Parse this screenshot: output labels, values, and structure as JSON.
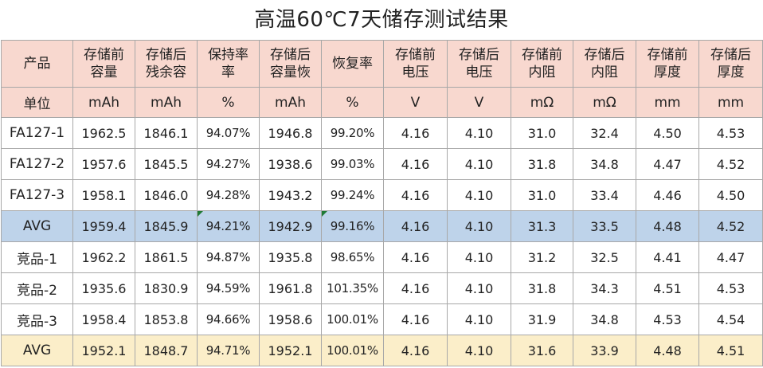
{
  "title": "高温60℃7天储存测试结果",
  "header": {
    "product": [
      "产品"
    ],
    "cap_before": [
      "存储前",
      "容量"
    ],
    "cap_after": [
      "存储后",
      "残余容"
    ],
    "retention": [
      "保持率",
      "率"
    ],
    "recover_cap": [
      "存储后",
      "容量恢"
    ],
    "recovery": [
      "恢复率"
    ],
    "v_before": [
      "存储前",
      "电压"
    ],
    "v_after": [
      "存储后",
      "电压"
    ],
    "r_before": [
      "存储前",
      "内阻"
    ],
    "r_after": [
      "存储后",
      "内阻"
    ],
    "t_before": [
      "存储前",
      "厚度"
    ],
    "t_after": [
      "存储后",
      "厚度"
    ]
  },
  "units": {
    "label": "单位",
    "cap_before": "mAh",
    "cap_after": "mAh",
    "retention": "%",
    "recover_cap": "mAh",
    "recovery": "%",
    "v_before": "V",
    "v_after": "V",
    "r_before": "mΩ",
    "r_after": "mΩ",
    "t_before": "mm",
    "t_after": "mm"
  },
  "rows": [
    {
      "product": "FA127-1",
      "cap_before": "1962.5",
      "cap_after": "1846.1",
      "retention": "94.07%",
      "recover_cap": "1946.8",
      "recovery": "99.20%",
      "v_before": "4.16",
      "v_after": "4.10",
      "r_before": "31.0",
      "r_after": "32.4",
      "t_before": "4.50",
      "t_after": "4.53"
    },
    {
      "product": "FA127-2",
      "cap_before": "1957.6",
      "cap_after": "1845.5",
      "retention": "94.27%",
      "recover_cap": "1938.6",
      "recovery": "99.03%",
      "v_before": "4.16",
      "v_after": "4.10",
      "r_before": "31.8",
      "r_after": "34.8",
      "t_before": "4.47",
      "t_after": "4.52"
    },
    {
      "product": "FA127-3",
      "cap_before": "1958.1",
      "cap_after": "1846.0",
      "retention": "94.28%",
      "recover_cap": "1943.2",
      "recovery": "99.24%",
      "v_before": "4.16",
      "v_after": "4.10",
      "r_before": "31.0",
      "r_after": "33.4",
      "t_before": "4.46",
      "t_after": "4.50"
    },
    {
      "product": "AVG",
      "cap_before": "1959.4",
      "cap_after": "1845.9",
      "retention": "94.21%",
      "recover_cap": "1942.9",
      "recovery": "99.16%",
      "v_before": "4.16",
      "v_after": "4.10",
      "r_before": "31.3",
      "r_after": "33.5",
      "t_before": "4.48",
      "t_after": "4.52"
    },
    {
      "product": "竞品-1",
      "cap_before": "1962.2",
      "cap_after": "1861.5",
      "retention": "94.87%",
      "recover_cap": "1935.8",
      "recovery": "98.65%",
      "v_before": "4.16",
      "v_after": "4.10",
      "r_before": "31.2",
      "r_after": "32.5",
      "t_before": "4.41",
      "t_after": "4.47"
    },
    {
      "product": "竞品-2",
      "cap_before": "1935.6",
      "cap_after": "1830.9",
      "retention": "94.59%",
      "recover_cap": "1961.8",
      "recovery": "101.35%",
      "v_before": "4.16",
      "v_after": "4.10",
      "r_before": "31.8",
      "r_after": "34.3",
      "t_before": "4.51",
      "t_after": "4.53"
    },
    {
      "product": "竞品-3",
      "cap_before": "1958.4",
      "cap_after": "1853.8",
      "retention": "94.66%",
      "recover_cap": "1958.6",
      "recovery": "100.01%",
      "v_before": "4.16",
      "v_after": "4.10",
      "r_before": "31.9",
      "r_after": "34.8",
      "t_before": "4.53",
      "t_after": "4.54"
    },
    {
      "product": "AVG",
      "cap_before": "1952.1",
      "cap_after": "1848.7",
      "retention": "94.71%",
      "recover_cap": "1952.1",
      "recovery": "100.01%",
      "v_before": "4.16",
      "v_after": "4.10",
      "r_before": "31.6",
      "r_after": "33.9",
      "t_before": "4.48",
      "t_after": "4.51"
    }
  ],
  "colors": {
    "header_bg": "#f8d8cf",
    "avg_group1_bg": "#bed3ea",
    "avg_group2_bg": "#fbeec9",
    "grid": "#a8a8a8",
    "error_flag": "#1f7a35"
  }
}
